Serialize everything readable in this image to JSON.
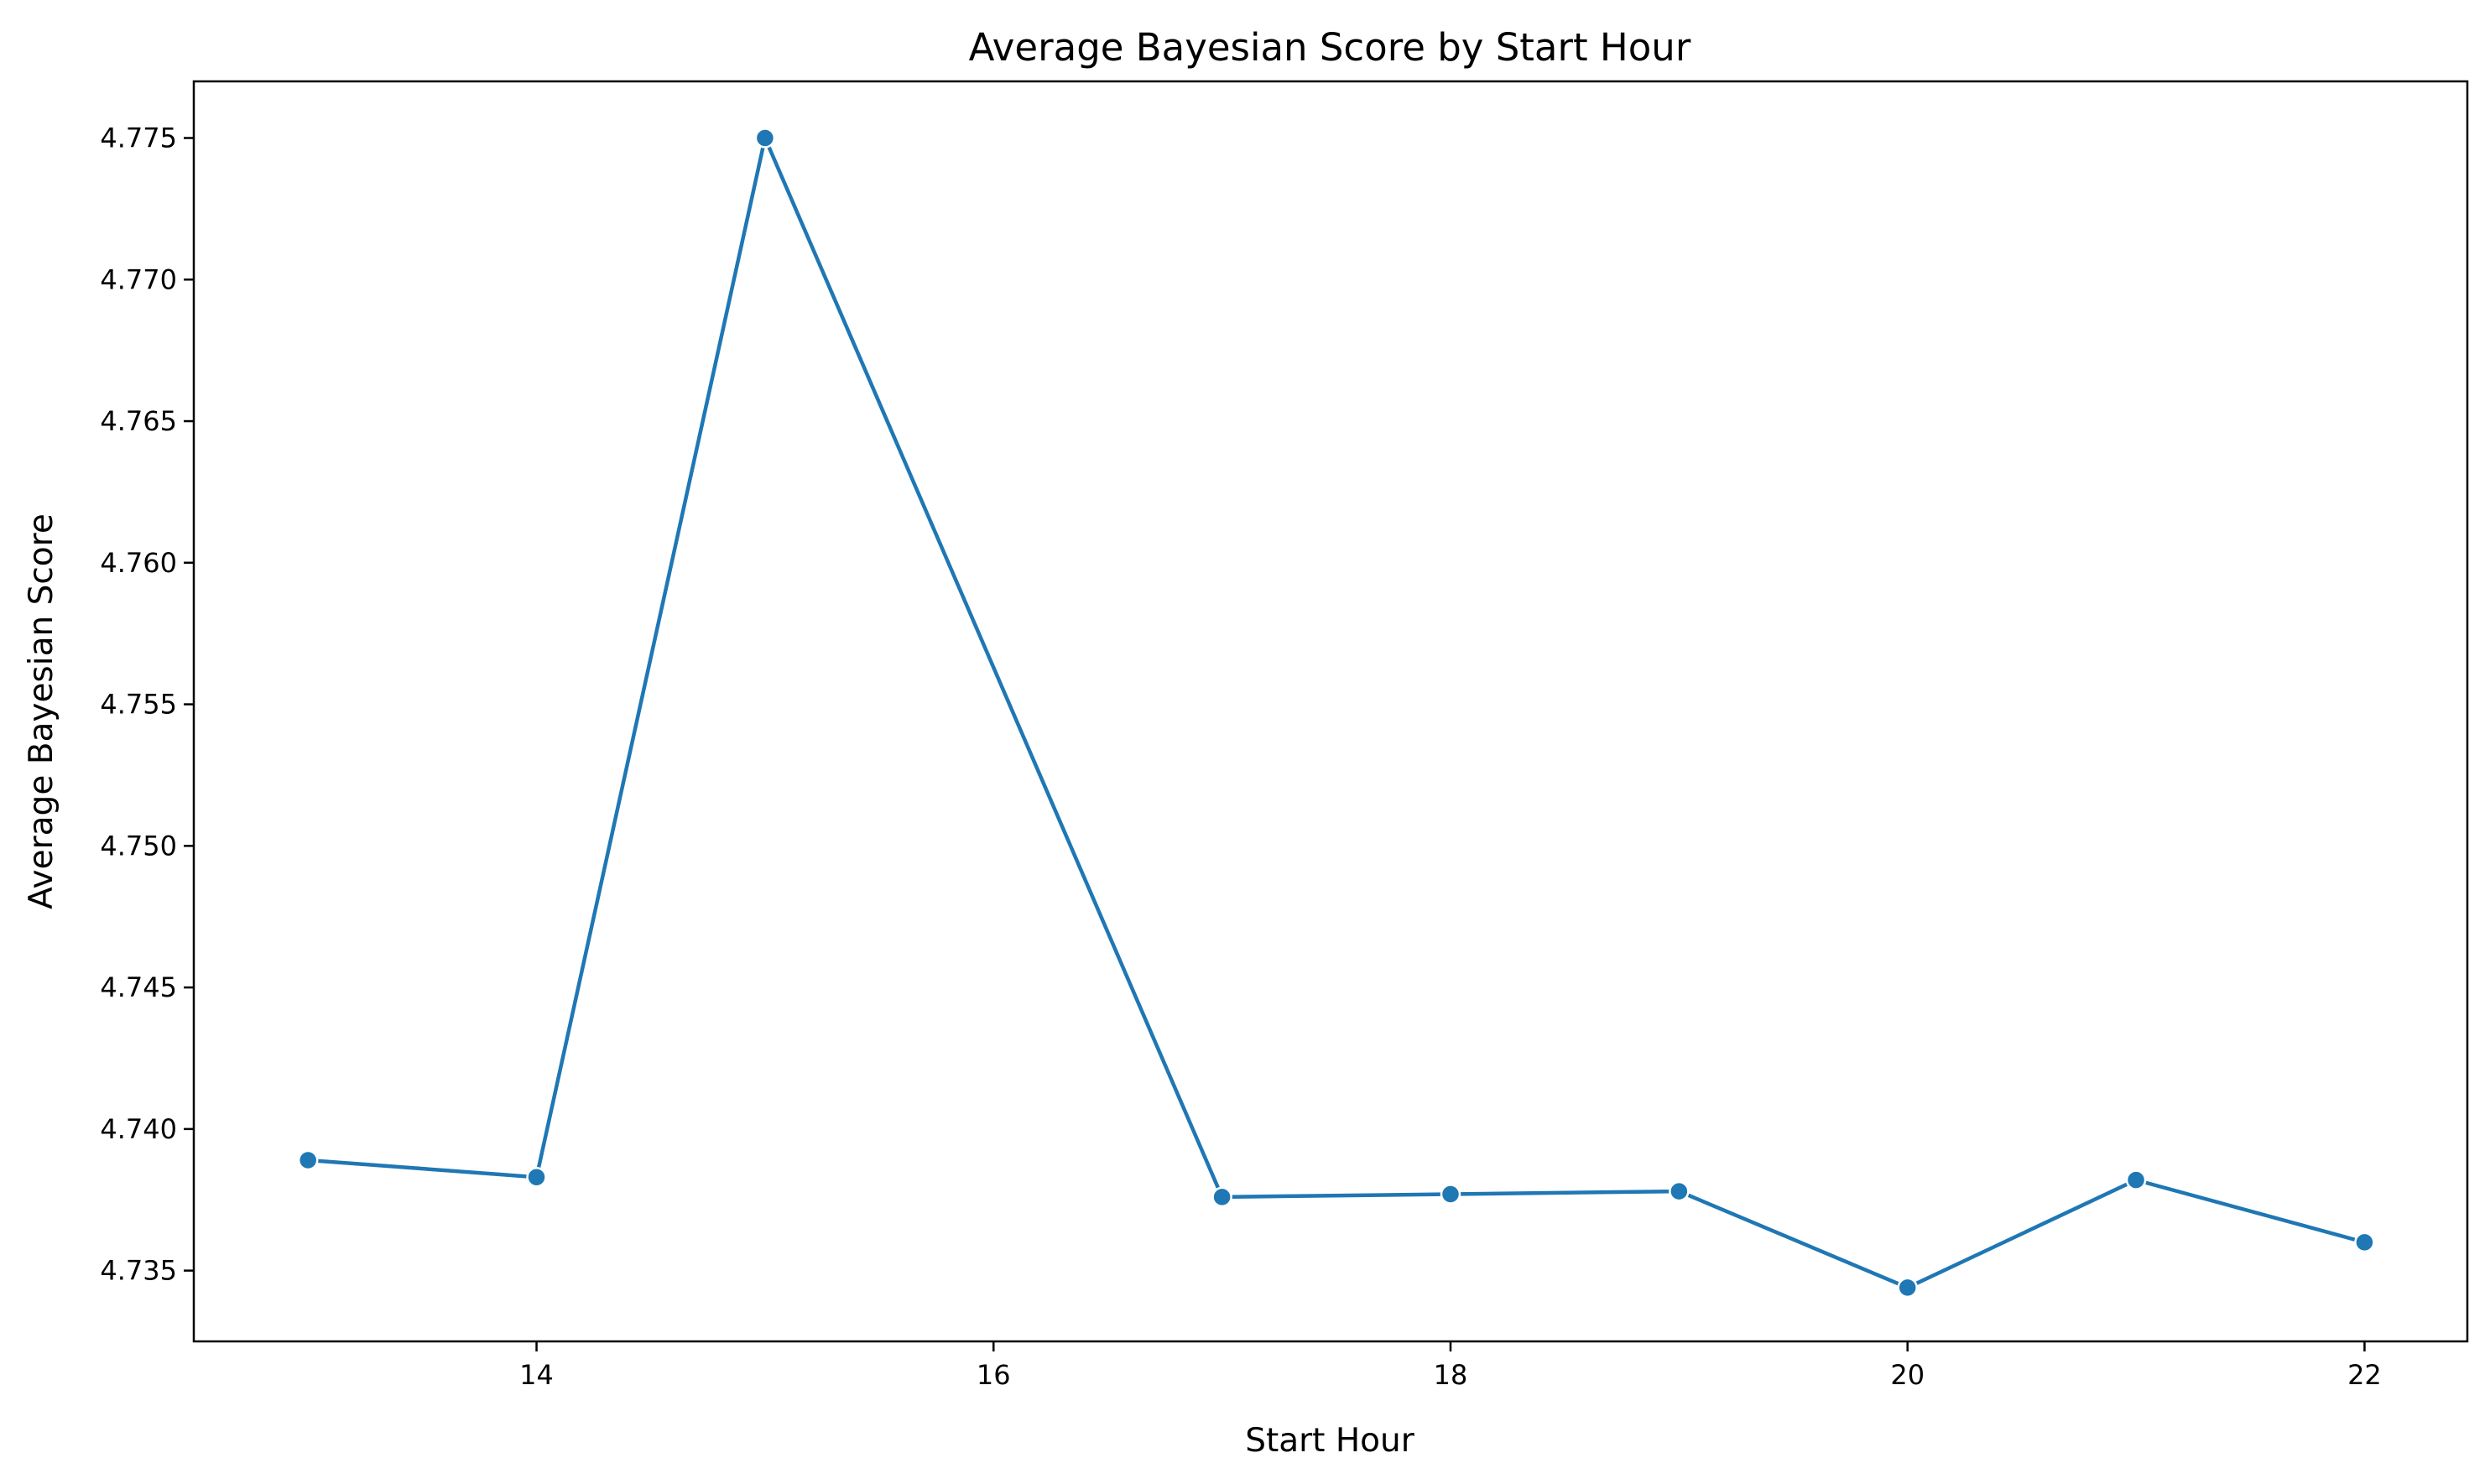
{
  "chart_data": {
    "type": "line",
    "title": "Average Bayesian Score by Start Hour",
    "xlabel": "Start Hour",
    "ylabel": "Average Bayesian Score",
    "xlim": [
      12.5,
      22.45
    ],
    "ylim": [
      4.7325,
      4.777
    ],
    "x_ticks": [
      14,
      16,
      18,
      20,
      22
    ],
    "y_ticks": [
      4.735,
      4.74,
      4.745,
      4.75,
      4.755,
      4.76,
      4.765,
      4.77,
      4.775
    ],
    "y_tick_labels": [
      "4.735",
      "4.740",
      "4.745",
      "4.750",
      "4.755",
      "4.760",
      "4.765",
      "4.770",
      "4.775"
    ],
    "grid": false,
    "series": [
      {
        "color": "#1f77b4",
        "marker": "circle",
        "x": [
          13,
          14,
          15,
          17,
          18,
          19,
          20,
          21,
          22
        ],
        "y": [
          4.7389,
          4.7383,
          4.775,
          4.7376,
          4.7377,
          4.7378,
          4.7344,
          4.7382,
          4.736
        ]
      }
    ]
  }
}
